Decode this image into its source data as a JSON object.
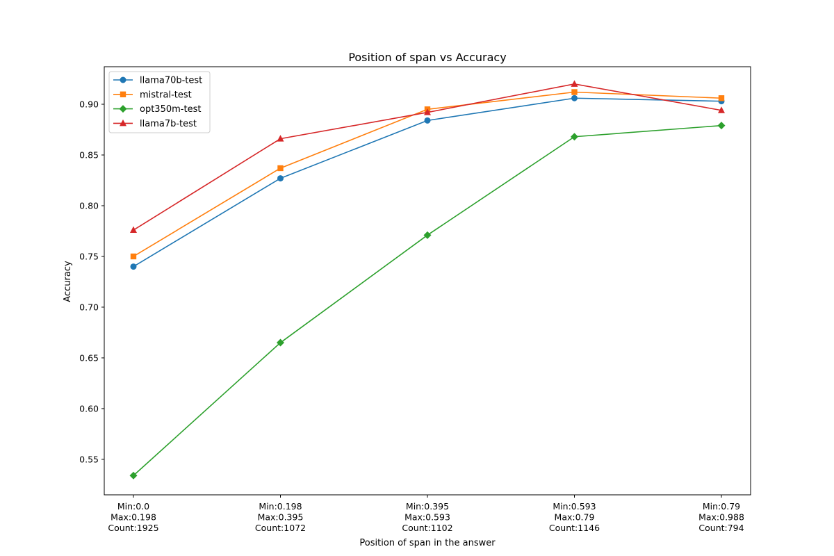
{
  "chart_data": {
    "type": "line",
    "title": "Position of span vs Accuracy",
    "xlabel": "Position of span in the answer",
    "ylabel": "Accuracy",
    "categories": [
      [
        "Min:0.0",
        "Max:0.198",
        "Count:1925"
      ],
      [
        "Min:0.198",
        "Max:0.395",
        "Count:1072"
      ],
      [
        "Min:0.395",
        "Max:0.593",
        "Count:1102"
      ],
      [
        "Min:0.593",
        "Max:0.79",
        "Count:1146"
      ],
      [
        "Min:0.79",
        "Max:0.988",
        "Count:794"
      ]
    ],
    "ylim": [
      0.515,
      0.937
    ],
    "yticks": [
      "0.55",
      "0.60",
      "0.65",
      "0.70",
      "0.75",
      "0.80",
      "0.85",
      "0.90"
    ],
    "grid": false,
    "legend_position": "top-left",
    "series": [
      {
        "name": "llama70b-test",
        "color": "#1f77b4",
        "marker": "circle",
        "values": [
          0.74,
          0.827,
          0.884,
          0.906,
          0.903
        ]
      },
      {
        "name": "mistral-test",
        "color": "#ff7f0e",
        "marker": "square",
        "values": [
          0.75,
          0.837,
          0.895,
          0.912,
          0.906
        ]
      },
      {
        "name": "opt350m-test",
        "color": "#2ca02c",
        "marker": "diamond",
        "values": [
          0.534,
          0.665,
          0.771,
          0.868,
          0.879
        ]
      },
      {
        "name": "llama7b-test",
        "color": "#d62728",
        "marker": "triangle",
        "values": [
          0.776,
          0.866,
          0.892,
          0.92,
          0.894
        ]
      }
    ]
  }
}
